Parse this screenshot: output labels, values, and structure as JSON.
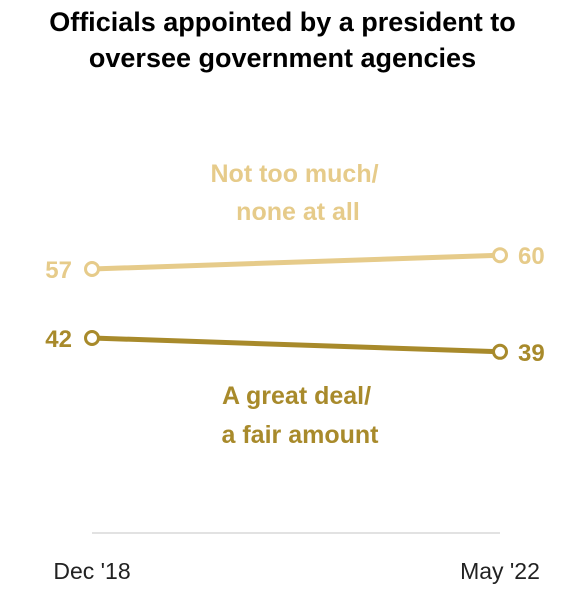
{
  "title_line1": "Officials appointed by a president to",
  "title_line2": "oversee government agencies",
  "chart_data": {
    "type": "line",
    "x": [
      "Dec '18",
      "May '22"
    ],
    "ylim": [
      0,
      100
    ],
    "grid": false,
    "series": [
      {
        "name_line1": "Not too much/",
        "name_line2": "none at all",
        "values": [
          57,
          60
        ],
        "color": "#e6cb8a"
      },
      {
        "name_line1": "A great deal/",
        "name_line2": "a fair amount",
        "values": [
          42,
          39
        ],
        "color": "#a88a2b"
      }
    ]
  }
}
